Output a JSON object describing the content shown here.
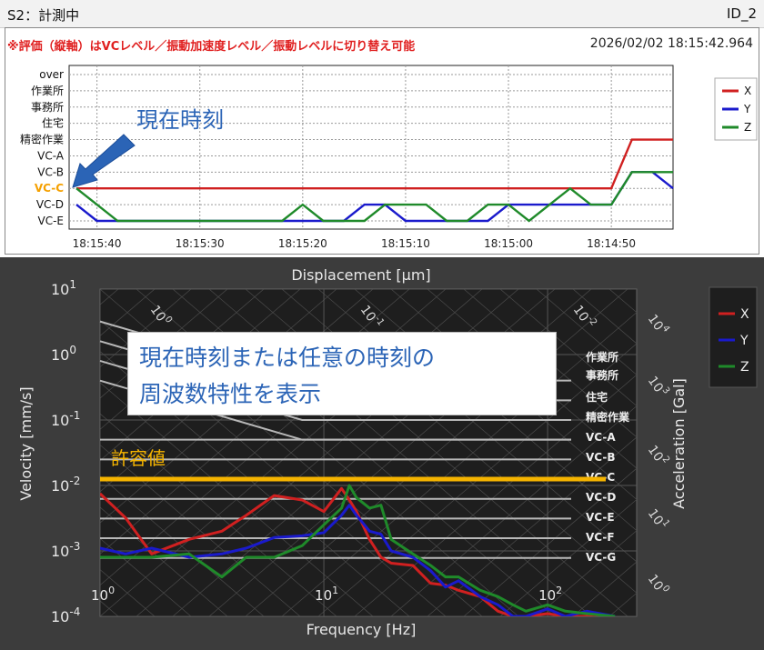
{
  "window": {
    "title": "S2：計測中",
    "id_label": "ID_2"
  },
  "upper": {
    "note": "※評価（縦軸）はVCレベル／振動加速度レベル／振動レベルに切り替え可能",
    "timestamp": "2026/02/02 18:15:42.964",
    "callout": "現在時刻",
    "y_levels": [
      "over",
      "作業所",
      "事務所",
      "住宅",
      "精密作業",
      "VC-A",
      "VC-B",
      "VC-C",
      "VC-D",
      "VC-E"
    ],
    "current_level": "VC-C",
    "x_ticks": [
      "18:15:40",
      "18:15:30",
      "18:15:20",
      "18:15:10",
      "18:15:00",
      "18:14:50"
    ],
    "legend": [
      "X",
      "Y",
      "Z"
    ]
  },
  "lower": {
    "top_axis_label": "Displacement [μm]",
    "bottom_axis_label": "Frequency [Hz]",
    "left_axis_label": "Velocity [mm/s]",
    "right_axis_label": "Acceleration [Gal]",
    "y_ticks": [
      {
        "base": "10",
        "exp": "1"
      },
      {
        "base": "10",
        "exp": "0"
      },
      {
        "base": "10",
        "exp": "-1"
      },
      {
        "base": "10",
        "exp": "-2"
      },
      {
        "base": "10",
        "exp": "-3"
      },
      {
        "base": "10",
        "exp": "-4"
      }
    ],
    "x_ticks": [
      {
        "base": "10",
        "exp": "0"
      },
      {
        "base": "10",
        "exp": "1"
      },
      {
        "base": "10",
        "exp": "2"
      }
    ],
    "top_ticks": [
      {
        "base": "10",
        "exp": "0"
      },
      {
        "base": "10",
        "exp": "-1"
      },
      {
        "base": "10",
        "exp": "-2"
      }
    ],
    "right_ticks": [
      {
        "base": "10",
        "exp": "4"
      },
      {
        "base": "10",
        "exp": "3"
      },
      {
        "base": "10",
        "exp": "2"
      },
      {
        "base": "10",
        "exp": "1"
      },
      {
        "base": "10",
        "exp": "0"
      }
    ],
    "criteria": [
      "作業所",
      "事務所",
      "住宅",
      "精密作業",
      "VC-A",
      "VC-B",
      "VC-C",
      "VC-D",
      "VC-E",
      "VC-F",
      "VC-G"
    ],
    "allowable_label": "許容値",
    "callout_line1": "現在時刻または任意の時刻の",
    "callout_line2": "周波数特性を表示",
    "legend": [
      "X",
      "Y",
      "Z"
    ]
  },
  "colors": {
    "X": "#d02020",
    "Y": "#1a1acc",
    "Z": "#1f8a2a",
    "allowable": "#f5b400",
    "current": "#f5a000",
    "callout_text": "#2b64b6"
  },
  "chart_data": [
    {
      "type": "line",
      "title": "",
      "xlabel": "",
      "ylabel": "",
      "x": [
        "18:15:42",
        "18:15:40",
        "18:15:38",
        "18:15:36",
        "18:15:34",
        "18:15:32",
        "18:15:30",
        "18:15:28",
        "18:15:26",
        "18:15:24",
        "18:15:22",
        "18:15:20",
        "18:15:18",
        "18:15:16",
        "18:15:14",
        "18:15:12",
        "18:15:10",
        "18:15:08",
        "18:15:06",
        "18:15:04",
        "18:15:02",
        "18:15:00",
        "18:14:58",
        "18:14:56",
        "18:14:54",
        "18:14:52",
        "18:14:50",
        "18:14:48",
        "18:14:46",
        "18:14:44"
      ],
      "x_note": "time decreases to the right",
      "y_categories": [
        "VC-E",
        "VC-D",
        "VC-C",
        "VC-B",
        "VC-A",
        "精密作業",
        "住宅",
        "事務所",
        "作業所",
        "over"
      ],
      "series": [
        {
          "name": "X",
          "values": [
            "VC-C",
            "VC-C",
            "VC-C",
            "VC-C",
            "VC-C",
            "VC-C",
            "VC-C",
            "VC-C",
            "VC-C",
            "VC-C",
            "VC-C",
            "VC-C",
            "VC-C",
            "VC-C",
            "VC-C",
            "VC-C",
            "VC-C",
            "VC-C",
            "VC-C",
            "VC-C",
            "VC-C",
            "VC-C",
            "VC-C",
            "VC-C",
            "VC-C",
            "VC-C",
            "VC-C",
            "精密作業",
            "精密作業",
            "精密作業"
          ]
        },
        {
          "name": "Y",
          "values": [
            "VC-D",
            "VC-E",
            "VC-E",
            "VC-E",
            "VC-E",
            "VC-E",
            "VC-E",
            "VC-E",
            "VC-E",
            "VC-E",
            "VC-E",
            "VC-E",
            "VC-E",
            "VC-E",
            "VC-D",
            "VC-D",
            "VC-E",
            "VC-E",
            "VC-E",
            "VC-E",
            "VC-E",
            "VC-D",
            "VC-D",
            "VC-D",
            "VC-D",
            "VC-D",
            "VC-D",
            "VC-B",
            "VC-B",
            "VC-C"
          ]
        },
        {
          "name": "Z",
          "values": [
            "VC-C",
            "VC-D",
            "VC-E",
            "VC-E",
            "VC-E",
            "VC-E",
            "VC-E",
            "VC-E",
            "VC-E",
            "VC-E",
            "VC-E",
            "VC-D",
            "VC-E",
            "VC-E",
            "VC-E",
            "VC-D",
            "VC-D",
            "VC-D",
            "VC-E",
            "VC-E",
            "VC-D",
            "VC-D",
            "VC-E",
            "VC-D",
            "VC-C",
            "VC-D",
            "VC-D",
            "VC-B",
            "VC-B",
            "VC-B"
          ]
        }
      ]
    },
    {
      "type": "line",
      "title": "",
      "xlabel": "Frequency [Hz]",
      "ylabel": "Velocity [mm/s]",
      "x_scale": "log",
      "y_scale": "log",
      "xlim": [
        1,
        250
      ],
      "ylim": [
        0.0001,
        10
      ],
      "series": [
        {
          "name": "X",
          "x": [
            1,
            1.3,
            1.7,
            2.5,
            3.5,
            4.5,
            6,
            8,
            10,
            12,
            13,
            14,
            16,
            18,
            20,
            25,
            30,
            35,
            40,
            50,
            60,
            70,
            80,
            100,
            120,
            150,
            200
          ],
          "values": [
            0.0075,
            0.0032,
            0.0009,
            0.0015,
            0.002,
            0.0035,
            0.007,
            0.006,
            0.004,
            0.009,
            0.006,
            0.004,
            0.0015,
            0.0008,
            0.00065,
            0.0006,
            0.00032,
            0.0003,
            0.00025,
            0.0002,
            0.00012,
            0.0001,
            0.0001,
            0.00011,
            0.0001,
            0.0001,
            9e-05
          ]
        },
        {
          "name": "Y",
          "x": [
            1,
            1.3,
            1.7,
            2.5,
            3.5,
            4.5,
            6,
            8,
            10,
            12,
            13,
            14,
            16,
            18,
            20,
            25,
            30,
            35,
            40,
            50,
            60,
            70,
            80,
            100,
            120,
            150,
            200
          ],
          "values": [
            0.0011,
            0.0009,
            0.0011,
            0.0008,
            0.0009,
            0.0011,
            0.0016,
            0.0017,
            0.0019,
            0.0035,
            0.005,
            0.0035,
            0.002,
            0.0018,
            0.001,
            0.0008,
            0.0005,
            0.00028,
            0.00035,
            0.0002,
            0.00015,
            0.0001,
            0.0001,
            0.00013,
            0.0001,
            0.00012,
            0.0001
          ]
        },
        {
          "name": "Z",
          "x": [
            1,
            1.3,
            1.7,
            2.5,
            3.5,
            4.5,
            6,
            8,
            10,
            12,
            13,
            14,
            16,
            18,
            20,
            25,
            30,
            35,
            40,
            50,
            60,
            70,
            80,
            100,
            120,
            150,
            200
          ],
          "values": [
            0.0008,
            0.0008,
            0.0008,
            0.0009,
            0.0004,
            0.0008,
            0.0008,
            0.0012,
            0.0025,
            0.0045,
            0.01,
            0.0065,
            0.0045,
            0.005,
            0.0015,
            0.0009,
            0.0006,
            0.0004,
            0.0004,
            0.00025,
            0.0002,
            0.00015,
            0.00012,
            0.00015,
            0.00012,
            0.00011,
            0.0001
          ]
        }
      ],
      "criteria_values": {
        "作業所": 0.4,
        "事務所": 0.2,
        "住宅": 0.1,
        "精密作業": 0.05,
        "VC-A": 0.05,
        "VC-B": 0.025,
        "VC-C": 0.0125,
        "VC-D": 0.00625,
        "VC-E": 0.003125,
        "VC-F": 0.0015625,
        "VC-G": 0.00078125
      },
      "allowable": 0.0125,
      "grid": true,
      "legend_position": "right"
    }
  ]
}
